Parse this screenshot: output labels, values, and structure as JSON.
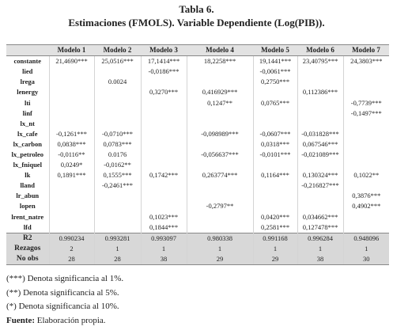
{
  "header": {
    "title": "Tabla 6.",
    "subtitle": "Estimaciones (FMOLS). Variable Dependiente (Log(PIB))."
  },
  "table": {
    "columns": [
      "Modelo 1",
      "Modelo 2",
      "Modelo 3",
      "Modelo 4",
      "Modelo 5",
      "Modelo 6",
      "Modelo 7"
    ],
    "rows": [
      [
        "constante",
        "21,4690***",
        "25,0516***",
        "17,1414***",
        "18,2258***",
        "19,1441***",
        "23,40795***",
        "24,3803***"
      ],
      [
        "lied",
        null,
        null,
        "-0,0186***",
        null,
        "-0,0061***",
        null,
        null
      ],
      [
        "lrega",
        null,
        "0.0024",
        null,
        null,
        "0,2750***",
        null,
        null
      ],
      [
        "lenergy",
        null,
        null,
        "0,3270***",
        "0,416929***",
        null,
        "0,112386***",
        null
      ],
      [
        "lti",
        null,
        null,
        null,
        "0,1247**",
        "0,0765***",
        null,
        "-0,7739***"
      ],
      [
        "linf",
        null,
        null,
        null,
        null,
        null,
        null,
        "-0,1497***"
      ],
      [
        "lx_nt",
        null,
        null,
        null,
        null,
        null,
        null,
        null
      ],
      [
        "lx_cafe",
        "-0,1261***",
        "-0,0710***",
        null,
        "-0,098989***",
        "-0,0607***",
        "-0,031828***",
        null
      ],
      [
        "lx_carbon",
        "0,0838***",
        "0,0783***",
        null,
        null,
        "0,0318***",
        "0,067546***",
        null
      ],
      [
        "lx_petroleo",
        "-0,0116**",
        "0.0176",
        null,
        "-0,056637***",
        "-0,0101***",
        "-0,021089***",
        null
      ],
      [
        "lx_fniquel",
        "0,0249*",
        "-0,0162**",
        null,
        null,
        null,
        null,
        null
      ],
      [
        "lk",
        "0,1891***",
        "0,1555***",
        "0,1742***",
        "0,263774***",
        "0,1164***",
        "0,130324***",
        "0,1022**"
      ],
      [
        "lland",
        null,
        "-0,2461***",
        null,
        null,
        null,
        "-0,216827***",
        null
      ],
      [
        "lr_abun",
        null,
        null,
        null,
        null,
        null,
        null,
        "0,3876***"
      ],
      [
        "lopen",
        null,
        null,
        null,
        "-0,2797**",
        null,
        null,
        "0,4902***"
      ],
      [
        "lrent_natre",
        null,
        null,
        "0,1023***",
        null,
        "0,0420***",
        "0,034662***",
        null
      ],
      [
        "lfd",
        null,
        null,
        "0,1844***",
        null,
        "0,2581***",
        "0,127478***",
        null
      ]
    ],
    "summary": [
      [
        "R2",
        "0.990234",
        "0.993281",
        "0.993097",
        "0.980338",
        "0.991168",
        "0.996284",
        "0.948096"
      ],
      [
        "Rezagos",
        "2",
        "1",
        "1",
        "1",
        "1",
        "1",
        "1"
      ],
      [
        "No obs",
        "28",
        "28",
        "38",
        "29",
        "29",
        "38",
        "30"
      ]
    ]
  },
  "notes": [
    "(***) Denota significancia al 1%.",
    "(**) Denota significancia al 5%.",
    "(*) Denota significancia al 10%."
  ],
  "source": {
    "label": "Fuente:",
    "text": "Elaboración propia."
  }
}
